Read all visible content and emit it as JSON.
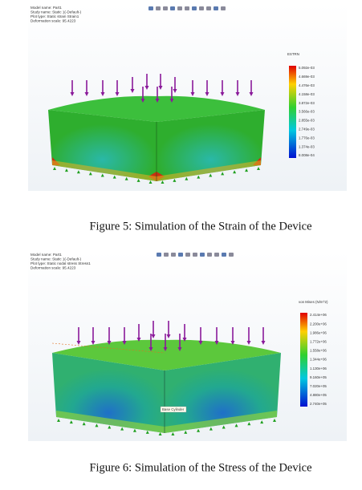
{
  "figures": [
    {
      "info": [
        "Model name: Part1",
        "Study name: Static 1(-Default-)",
        "Plot type: Static strain Strain1",
        "Deformation scale: 95.4223"
      ],
      "legend_title": "ESTRN",
      "legend_labels": [
        "5.092e-03",
        "4.669e-03",
        "4.476e-03",
        "4.158e-03",
        "3.872e-03",
        "3.566e-03",
        "2.855e-03",
        "2.749e-03",
        "1.776e-03",
        "1.374e-03",
        "8.008e-04"
      ],
      "caption": "Figure 5: Simulation of the Strain of the Device"
    },
    {
      "info": [
        "Model name: Part1",
        "Study name: Static 1(-Default-)",
        "Plot type: Static nodal stress Stress1",
        "Deformation scale: 95.4223"
      ],
      "legend_title": "von Mises (N/m^2)",
      "legend_labels": [
        "2.414e+06",
        "2.200e+06",
        "1.986e+06",
        "1.772e+06",
        "1.558e+06",
        "1.344e+06",
        "1.130e+06",
        "9.160e+05",
        "7.020e+05",
        "4.880e+05",
        "2.740e+05"
      ],
      "tooltip": "Base Cylinder",
      "caption": "Figure 6: Simulation of the Stress of the Device"
    }
  ]
}
